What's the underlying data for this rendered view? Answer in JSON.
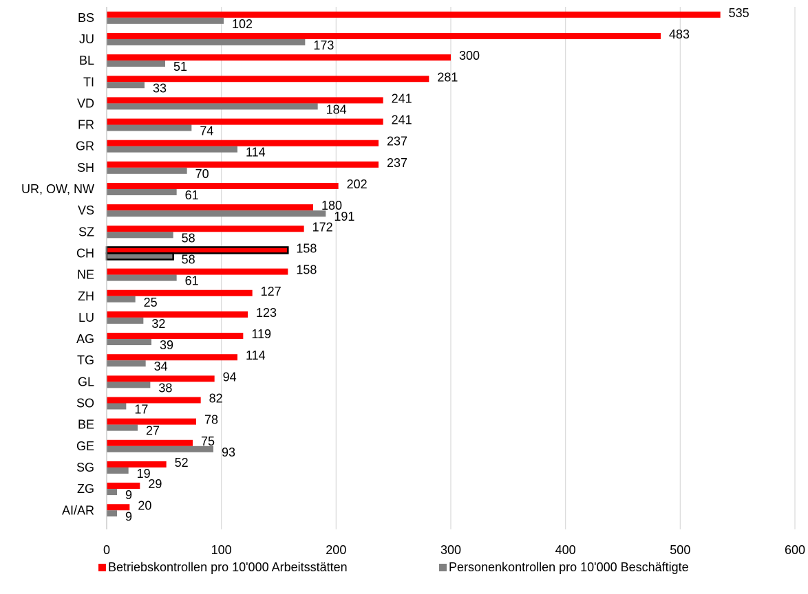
{
  "chart_data": {
    "type": "bar",
    "orientation": "horizontal",
    "categories": [
      "BS",
      "JU",
      "BL",
      "TI",
      "VD",
      "FR",
      "GR",
      "SH",
      "UR, OW, NW",
      "VS",
      "SZ",
      "CH",
      "NE",
      "ZH",
      "LU",
      "AG",
      "TG",
      "GL",
      "SO",
      "BE",
      "GE",
      "SG",
      "ZG",
      "AI/AR"
    ],
    "series": [
      {
        "name": "Betriebskontrollen pro 10'000 Arbeitsstätten",
        "color": "#ff0000",
        "values": [
          535,
          483,
          300,
          281,
          241,
          241,
          237,
          237,
          202,
          180,
          172,
          158,
          158,
          127,
          123,
          119,
          114,
          94,
          82,
          78,
          75,
          52,
          29,
          20
        ]
      },
      {
        "name": "Personenkontrollen pro 10'000 Beschäftigte",
        "color": "#808080",
        "values": [
          102,
          173,
          51,
          33,
          184,
          74,
          114,
          70,
          61,
          191,
          58,
          58,
          61,
          25,
          32,
          39,
          34,
          38,
          17,
          27,
          93,
          19,
          9,
          9
        ]
      }
    ],
    "highlight_category": "CH",
    "highlight_outline_color": "#000000",
    "xlim": [
      0,
      600
    ],
    "x_ticks": [
      0,
      100,
      200,
      300,
      400,
      500,
      600
    ],
    "grid": "vertical",
    "grid_color": "#d9d9d9",
    "legend_position": "bottom",
    "title": "",
    "xlabel": "",
    "ylabel": ""
  }
}
